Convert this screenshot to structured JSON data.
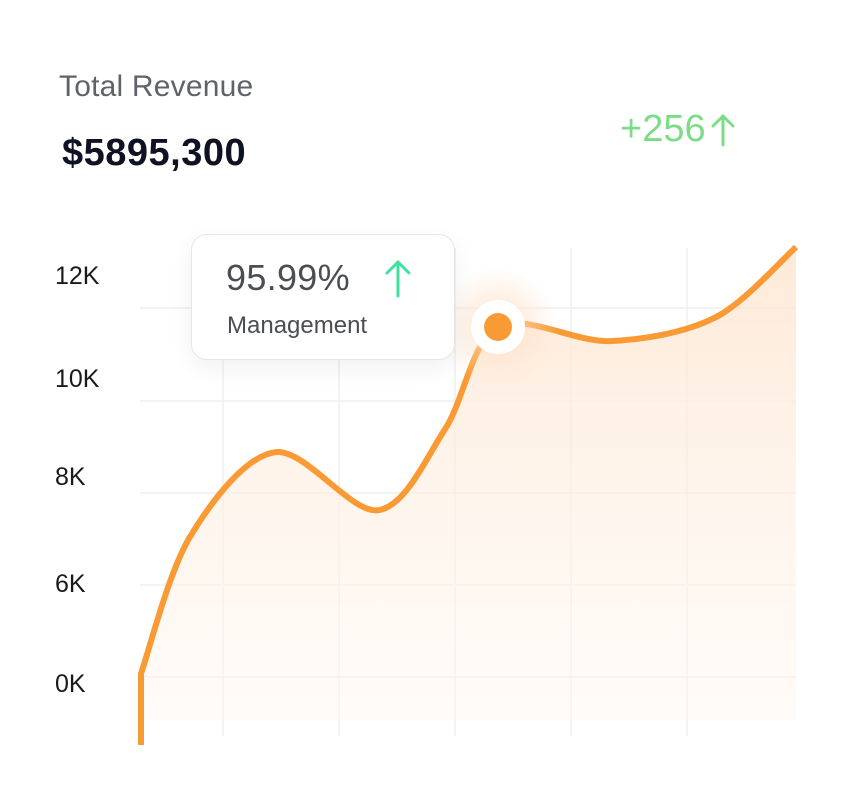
{
  "header": {
    "title": "Total Revenue",
    "amount": "$5895,300",
    "delta": "+256"
  },
  "tooltip": {
    "value": "95.99%",
    "label": "Management"
  },
  "colors": {
    "line": "#f99a34",
    "delta": "#7ddc87",
    "tooltip_arrow": "#3ee2a0",
    "grid": "#efefef"
  },
  "chart_data": {
    "type": "area",
    "title": "Total Revenue",
    "y_tick_labels": [
      "12K",
      "10K",
      "8K",
      "6K",
      "0K"
    ],
    "x": [
      0,
      1,
      2,
      3,
      4,
      5,
      6,
      7,
      8
    ],
    "values": [
      4200,
      7200,
      8300,
      7500,
      8800,
      11000,
      10700,
      11200,
      12700
    ],
    "highlight_index": 5,
    "grid": true
  }
}
